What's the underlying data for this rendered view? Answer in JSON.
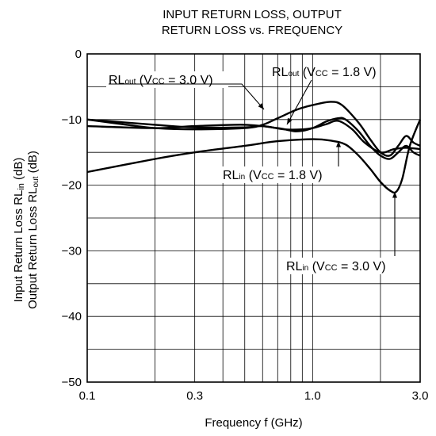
{
  "chart_data": {
    "type": "line",
    "title_line1": "INPUT RETURN LOSS, OUTPUT",
    "title_line2": "RETURN LOSS vs. FREQUENCY",
    "xlabel": "Frequency  f (GHz)",
    "ylabel_line1": "Input Return Loss  RL",
    "ylabel_line1_sub": "in",
    "ylabel_line1_unit": " (dB)",
    "ylabel_line2": "Output Return Loss  RL",
    "ylabel_line2_sub": "out",
    "ylabel_line2_unit": " (dB)",
    "x_scale": "log",
    "xlim": [
      0.1,
      3.0
    ],
    "ylim": [
      -50,
      0
    ],
    "grid": true,
    "x_ticks": [
      {
        "value": 0.1,
        "label": "0.1"
      },
      {
        "value": 0.3,
        "label": "0.3"
      },
      {
        "value": 1.0,
        "label": "1.0"
      },
      {
        "value": 3.0,
        "label": "3.0"
      }
    ],
    "y_ticks": [
      {
        "value": 0,
        "label": "0"
      },
      {
        "value": -10,
        "label": "−10"
      },
      {
        "value": -20,
        "label": "−20"
      },
      {
        "value": -30,
        "label": "−30"
      },
      {
        "value": -40,
        "label": "−40"
      },
      {
        "value": -50,
        "label": "−50"
      }
    ],
    "series": [
      {
        "name": "RLout (VCC = 3.0 V)",
        "color": "#000000",
        "points": [
          [
            0.1,
            -10.0
          ],
          [
            0.15,
            -10.8
          ],
          [
            0.2,
            -11.3
          ],
          [
            0.3,
            -11.5
          ],
          [
            0.5,
            -11.3
          ],
          [
            0.6,
            -10.8
          ],
          [
            0.7,
            -9.8
          ],
          [
            0.85,
            -8.5
          ],
          [
            1.0,
            -7.8
          ],
          [
            1.2,
            -7.3
          ],
          [
            1.35,
            -7.8
          ],
          [
            1.6,
            -10.5
          ],
          [
            1.8,
            -13.0
          ],
          [
            2.0,
            -15.0
          ],
          [
            2.2,
            -15.5
          ],
          [
            2.4,
            -14.0
          ],
          [
            2.6,
            -12.5
          ],
          [
            2.8,
            -13.5
          ],
          [
            3.0,
            -14.0
          ]
        ]
      },
      {
        "name": "RLout (VCC = 1.8 V)",
        "color": "#000000",
        "points": [
          [
            0.1,
            -10.0
          ],
          [
            0.2,
            -10.8
          ],
          [
            0.3,
            -11.2
          ],
          [
            0.5,
            -11.2
          ],
          [
            0.6,
            -11.0
          ],
          [
            0.75,
            -11.5
          ],
          [
            0.9,
            -11.5
          ],
          [
            1.0,
            -11.3
          ],
          [
            1.15,
            -10.7
          ],
          [
            1.3,
            -10.2
          ],
          [
            1.5,
            -11.5
          ],
          [
            1.7,
            -13.5
          ],
          [
            2.0,
            -15.0
          ],
          [
            2.3,
            -14.5
          ],
          [
            2.6,
            -14.3
          ],
          [
            3.0,
            -14.5
          ]
        ]
      },
      {
        "name": "RLin (VCC = 1.8 V)",
        "color": "#000000",
        "points": [
          [
            0.1,
            -11.0
          ],
          [
            0.2,
            -11.3
          ],
          [
            0.3,
            -11.0
          ],
          [
            0.5,
            -10.8
          ],
          [
            0.7,
            -11.3
          ],
          [
            0.85,
            -11.8
          ],
          [
            1.0,
            -11.3
          ],
          [
            1.15,
            -10.3
          ],
          [
            1.3,
            -9.8
          ],
          [
            1.4,
            -10.0
          ],
          [
            1.6,
            -11.8
          ],
          [
            1.8,
            -14.0
          ],
          [
            2.0,
            -15.5
          ],
          [
            2.2,
            -16.0
          ],
          [
            2.4,
            -15.0
          ],
          [
            2.6,
            -14.0
          ],
          [
            2.8,
            -15.0
          ],
          [
            3.0,
            -15.5
          ]
        ]
      },
      {
        "name": "RLin (VCC = 3.0 V)",
        "color": "#000000",
        "points": [
          [
            0.1,
            -18.0
          ],
          [
            0.2,
            -16.0
          ],
          [
            0.3,
            -15.0
          ],
          [
            0.5,
            -14.0
          ],
          [
            0.7,
            -13.3
          ],
          [
            1.0,
            -13.0
          ],
          [
            1.2,
            -13.2
          ],
          [
            1.4,
            -13.8
          ],
          [
            1.6,
            -15.5
          ],
          [
            1.8,
            -17.5
          ],
          [
            2.0,
            -19.5
          ],
          [
            2.2,
            -20.8
          ],
          [
            2.35,
            -21.0
          ],
          [
            2.5,
            -19.0
          ],
          [
            2.7,
            -14.0
          ],
          [
            3.0,
            -10.0
          ]
        ]
      }
    ],
    "annotations": [
      {
        "id": "ann-rlout-30",
        "main": "RL",
        "sub": "out",
        "rest1": " (V",
        "sub2": "CC",
        "rest2": " = 3.0 V)",
        "target": [
          0.78,
          -9.2
        ]
      },
      {
        "id": "ann-rlout-18",
        "main": "RL",
        "sub": "out",
        "rest1": " (V",
        "sub2": "CC",
        "rest2": " = 1.8 V)",
        "target": [
          0.78,
          -11.5
        ]
      },
      {
        "id": "ann-rlin-18",
        "main": "RL",
        "sub": "in",
        "rest1": " (V",
        "sub2": "CC",
        "rest2": " = 1.8 V)",
        "target": [
          1.32,
          -10.0
        ]
      },
      {
        "id": "ann-rlin-30",
        "main": "RL",
        "sub": "in",
        "rest1": " (V",
        "sub2": "CC",
        "rest2": " = 3.0 V)",
        "target": [
          2.35,
          -21.0
        ]
      }
    ]
  }
}
